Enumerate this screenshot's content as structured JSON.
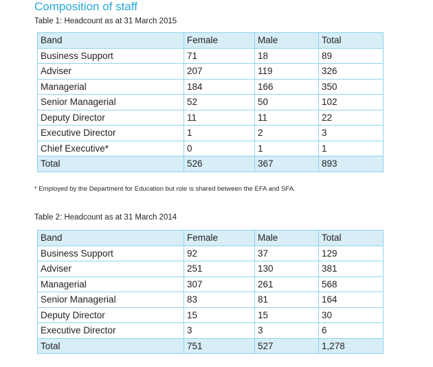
{
  "heading": "Composition of staff",
  "columns": [
    "Band",
    "Female",
    "Male",
    "Total"
  ],
  "table1": {
    "caption": "Table 1: Headcount as at 31 March 2015",
    "rows": [
      [
        "Business Support",
        "71",
        "18",
        "89"
      ],
      [
        "Adviser",
        "207",
        "119",
        "326"
      ],
      [
        "Managerial",
        "184",
        "166",
        "350"
      ],
      [
        "Senior Managerial",
        "52",
        "50",
        "102"
      ],
      [
        "Deputy Director",
        "11",
        "11",
        "22"
      ],
      [
        "Executive Director",
        "1",
        "2",
        "3"
      ],
      [
        "Chief Executive*",
        "0",
        "1",
        "1"
      ]
    ],
    "total": [
      "Total",
      "526",
      "367",
      "893"
    ]
  },
  "footnote": "* Employed by the Department for Education but role is shared between the EFA and SFA.",
  "table2": {
    "caption": "Table 2: Headcount as at 31 March 2014",
    "rows": [
      [
        "Business Support",
        "92",
        "37",
        "129"
      ],
      [
        "Adviser",
        "251",
        "130",
        "381"
      ],
      [
        "Managerial",
        "307",
        "261",
        "568"
      ],
      [
        "Senior Managerial",
        "83",
        "81",
        "164"
      ],
      [
        "Deputy Director",
        "15",
        "15",
        "30"
      ],
      [
        "Executive Director",
        "3",
        "3",
        "6"
      ]
    ],
    "total": [
      "Total",
      "751",
      "527",
      "1,278"
    ]
  }
}
